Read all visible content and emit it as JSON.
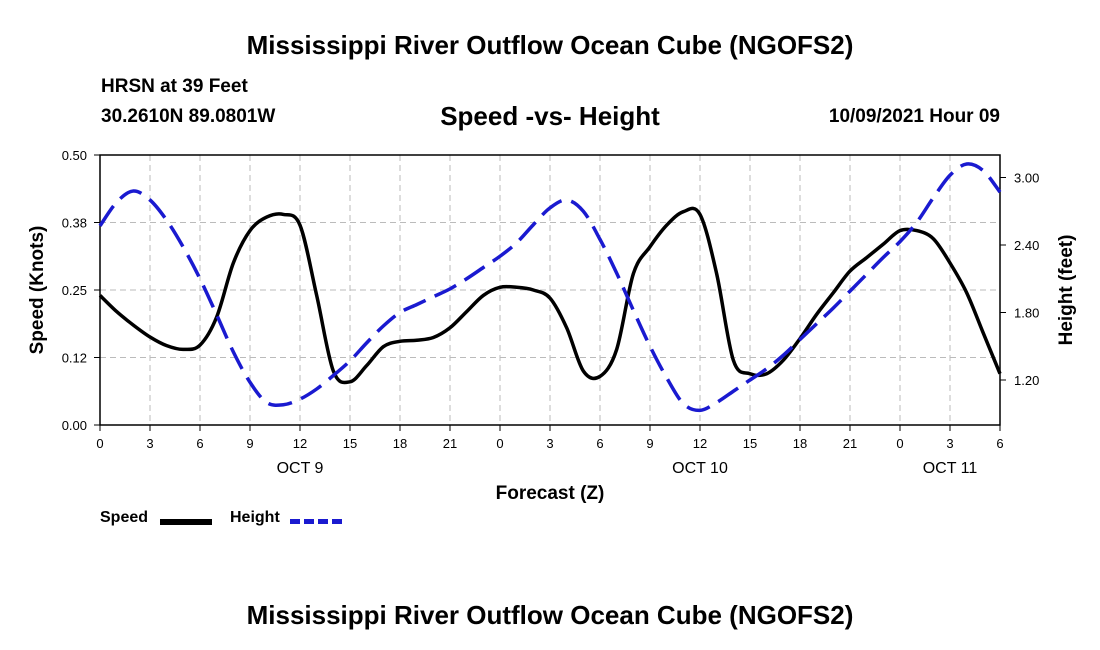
{
  "header": {
    "title": "Mississippi River Outflow Ocean Cube (NGOFS2)",
    "station": "HRSN at 39 Feet",
    "coords": "30.2610N  89.0801W",
    "chart_title": "Speed -vs- Height",
    "datetime": "10/09/2021 Hour 09"
  },
  "footer": {
    "title": "Mississippi River Outflow Ocean Cube (NGOFS2)"
  },
  "legend": {
    "speed_label": "Speed",
    "height_label": "Height"
  },
  "colors": {
    "speed": "#000000",
    "height": "#1a1ad0",
    "grid": "#bbbbbb"
  },
  "chart_data": {
    "type": "line",
    "title": "Speed -vs- Height",
    "xlabel": "Forecast (Z)",
    "ylabel": "Speed (Knots)",
    "y2label": "Height (feet)",
    "xlim": [
      0,
      54
    ],
    "ylim": [
      0,
      0.5
    ],
    "y2lim": [
      0.8,
      3.2
    ],
    "x_ticks": [
      0,
      3,
      6,
      9,
      12,
      15,
      18,
      21,
      24,
      27,
      30,
      33,
      36,
      39,
      42,
      45,
      48,
      51,
      54
    ],
    "x_tick_labels": [
      "0",
      "3",
      "6",
      "9",
      "12",
      "15",
      "18",
      "21",
      "0",
      "3",
      "6",
      "9",
      "12",
      "15",
      "18",
      "21",
      "0",
      "3",
      "6"
    ],
    "date_labels": [
      {
        "x": 12,
        "label": "OCT 9"
      },
      {
        "x": 36,
        "label": "OCT 10"
      },
      {
        "x": 51,
        "label": "OCT 11"
      }
    ],
    "y_ticks": [
      0,
      0.125,
      0.25,
      0.375,
      0.5
    ],
    "y_tick_labels": [
      "0.00",
      "0.12",
      "0.25",
      "0.38",
      "0.50"
    ],
    "y2_ticks": [
      1.2,
      1.8,
      2.4,
      3.0
    ],
    "y2_tick_labels": [
      "1.20",
      "1.80",
      "2.40",
      "3.00"
    ],
    "grid": true,
    "legend_position": "bottom-left",
    "series": [
      {
        "name": "Speed",
        "axis": "left",
        "style": "solid",
        "x": [
          0,
          1,
          2,
          3,
          4,
          5,
          6,
          7,
          8,
          9,
          10,
          11,
          12,
          13,
          14,
          15,
          16,
          17,
          18,
          19,
          20,
          21,
          22,
          23,
          24,
          25,
          26,
          27,
          28,
          29,
          30,
          31,
          32,
          33,
          34,
          35,
          36,
          37,
          38,
          39,
          40,
          41,
          42,
          43,
          44,
          45,
          46,
          47,
          48,
          49,
          50,
          51,
          52,
          53,
          54
        ],
        "values": [
          0.24,
          0.21,
          0.185,
          0.163,
          0.147,
          0.14,
          0.148,
          0.2,
          0.3,
          0.36,
          0.385,
          0.39,
          0.37,
          0.24,
          0.1,
          0.08,
          0.11,
          0.145,
          0.155,
          0.157,
          0.162,
          0.18,
          0.21,
          0.24,
          0.255,
          0.255,
          0.25,
          0.235,
          0.18,
          0.1,
          0.09,
          0.14,
          0.28,
          0.33,
          0.37,
          0.395,
          0.39,
          0.28,
          0.12,
          0.095,
          0.095,
          0.12,
          0.16,
          0.205,
          0.245,
          0.285,
          0.31,
          0.335,
          0.36,
          0.36,
          0.345,
          0.3,
          0.245,
          0.17,
          0.095
        ]
      },
      {
        "name": "Height",
        "axis": "right",
        "style": "dashed",
        "x": [
          0,
          1,
          2,
          3,
          4,
          5,
          6,
          7,
          8,
          9,
          10,
          11,
          12,
          13,
          14,
          15,
          16,
          17,
          18,
          19,
          20,
          21,
          22,
          23,
          24,
          25,
          26,
          27,
          28,
          29,
          30,
          31,
          32,
          33,
          34,
          35,
          36,
          37,
          38,
          39,
          40,
          41,
          42,
          43,
          44,
          45,
          46,
          47,
          48,
          49,
          50,
          51,
          52,
          53,
          54
        ],
        "values": [
          2.57,
          2.78,
          2.88,
          2.8,
          2.62,
          2.38,
          2.1,
          1.78,
          1.45,
          1.18,
          1.0,
          0.98,
          1.03,
          1.12,
          1.24,
          1.37,
          1.53,
          1.68,
          1.8,
          1.87,
          1.94,
          2.01,
          2.1,
          2.2,
          2.3,
          2.42,
          2.58,
          2.73,
          2.8,
          2.7,
          2.45,
          2.15,
          1.82,
          1.5,
          1.22,
          0.99,
          0.93,
          1.0,
          1.1,
          1.2,
          1.3,
          1.42,
          1.56,
          1.7,
          1.84,
          1.99,
          2.14,
          2.29,
          2.43,
          2.6,
          2.82,
          3.02,
          3.12,
          3.06,
          2.87
        ]
      }
    ]
  }
}
